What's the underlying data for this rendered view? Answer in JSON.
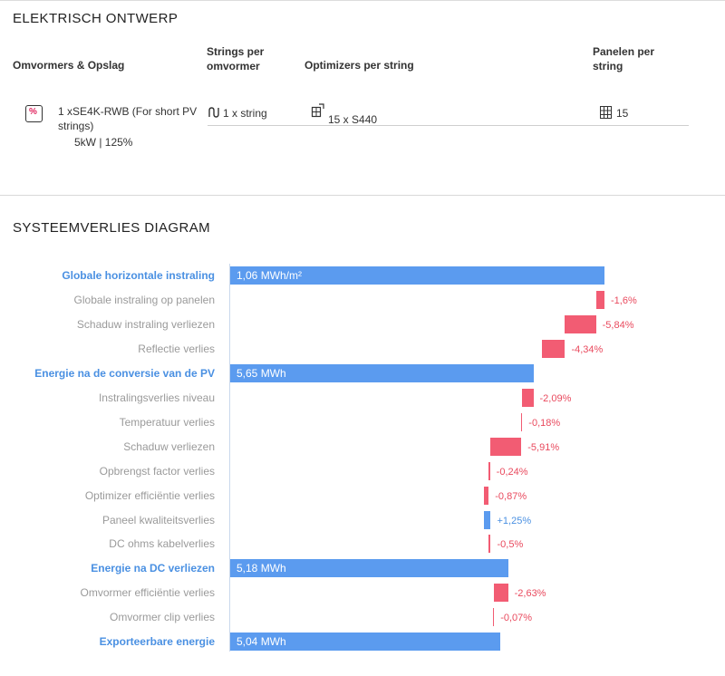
{
  "design": {
    "title": "ELEKTRISCH ONTWERP",
    "headers": {
      "inverters": "Omvormers & Opslag",
      "strings_per_inverter": "Strings per omvormer",
      "optimizers": "Optimizers per string",
      "panels": "Panelen per string"
    },
    "row": {
      "inverter_name": "1 xSE4K-RWB (For short PV strings)",
      "inverter_spec": "5kW | 125%",
      "strings": "1 x string",
      "optimizers": "15 x S440",
      "panels": "15"
    },
    "icons": [
      "inverter-icon",
      "string-icon",
      "optimizer-icon",
      "panel-grid-icon"
    ]
  },
  "losses": {
    "title": "SYSTEEMVERLIES DIAGRAM"
  },
  "colors": {
    "total": "#5b9bef",
    "loss": "#f25c73",
    "gain": "#5b9bef",
    "total_label": "#4a90e2",
    "loss_text": "#e94a5e"
  },
  "chart_data": {
    "type": "bar",
    "variant": "waterfall",
    "orientation": "horizontal",
    "title": "SYSTEEMVERLIES DIAGRAM",
    "items": [
      {
        "label": "Globale horizontale instraling",
        "kind": "total",
        "value_text": "1,06 MWh/m²",
        "fraction": 1.0
      },
      {
        "label": "Globale instraling op panelen",
        "kind": "change",
        "value_pct": -1.6,
        "value_text": "-1,6%"
      },
      {
        "label": "Schaduw instraling verliezen",
        "kind": "change",
        "value_pct": -5.84,
        "value_text": "-5,84%"
      },
      {
        "label": "Reflectie verlies",
        "kind": "change",
        "value_pct": -4.34,
        "value_text": "-4,34%"
      },
      {
        "label": "Energie na de conversie van de PV",
        "kind": "total",
        "value_text": "5,65 MWh",
        "fraction": 0.81
      },
      {
        "label": "Instralingsverlies niveau",
        "kind": "change",
        "value_pct": -2.09,
        "value_text": "-2,09%"
      },
      {
        "label": "Temperatuur verlies",
        "kind": "change",
        "value_pct": -0.18,
        "value_text": "-0,18%"
      },
      {
        "label": "Schaduw verliezen",
        "kind": "change",
        "value_pct": -5.91,
        "value_text": "-5,91%"
      },
      {
        "label": "Opbrengst factor verlies",
        "kind": "change",
        "value_pct": -0.24,
        "value_text": "-0,24%"
      },
      {
        "label": "Optimizer efficiëntie verlies",
        "kind": "change",
        "value_pct": -0.87,
        "value_text": "-0,87%"
      },
      {
        "label": "Paneel kwaliteitsverlies",
        "kind": "change",
        "value_pct": 1.25,
        "value_text": "+1,25%"
      },
      {
        "label": "DC ohms kabelverlies",
        "kind": "change",
        "value_pct": -0.5,
        "value_text": "-0,5%"
      },
      {
        "label": "Energie na DC verliezen",
        "kind": "total",
        "value_text": "5,18 MWh",
        "fraction": 0.7424
      },
      {
        "label": "Omvormer efficiëntie verlies",
        "kind": "change",
        "value_pct": -2.63,
        "value_text": "-2,63%"
      },
      {
        "label": "Omvormer clip verlies",
        "kind": "change",
        "value_pct": -0.07,
        "value_text": "-0,07%"
      },
      {
        "label": "Exporteerbare energie",
        "kind": "total",
        "value_text": "5,04 MWh",
        "fraction": 0.7224
      }
    ]
  }
}
